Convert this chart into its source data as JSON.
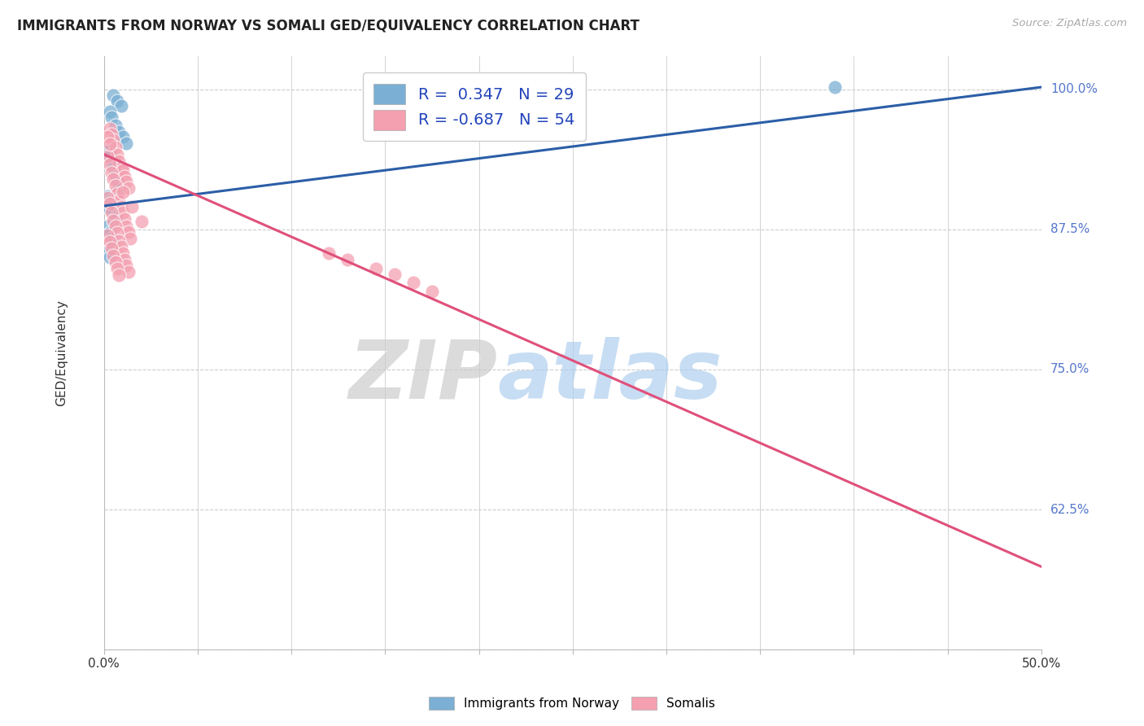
{
  "title": "IMMIGRANTS FROM NORWAY VS SOMALI GED/EQUIVALENCY CORRELATION CHART",
  "source": "Source: ZipAtlas.com",
  "ylabel": "GED/Equivalency",
  "xlim": [
    0.0,
    0.5
  ],
  "ylim": [
    0.5,
    1.03
  ],
  "xtick_positions": [
    0.0,
    0.05,
    0.1,
    0.15,
    0.2,
    0.25,
    0.3,
    0.35,
    0.4,
    0.45,
    0.5
  ],
  "ytick_positions": [
    0.5,
    0.625,
    0.75,
    0.875,
    1.0
  ],
  "ytick_labels": [
    "",
    "62.5%",
    "75.0%",
    "87.5%",
    "100.0%"
  ],
  "legend_r_norway": " 0.347",
  "legend_n_norway": "29",
  "legend_r_somali": "-0.687",
  "legend_n_somali": "54",
  "norway_color": "#7BAFD4",
  "somali_color": "#F4A0B0",
  "norway_line_color": "#2B5EA7",
  "somali_line_color": "#E0507A",
  "norway_scatter_x": [
    0.005,
    0.007,
    0.009,
    0.003,
    0.004,
    0.006,
    0.008,
    0.01,
    0.012,
    0.002,
    0.003,
    0.004,
    0.005,
    0.006,
    0.007,
    0.008,
    0.002,
    0.003,
    0.004,
    0.005,
    0.006,
    0.002,
    0.003,
    0.004,
    0.005,
    0.002,
    0.003,
    0.002,
    0.39
  ],
  "norway_scatter_y": [
    0.995,
    0.99,
    0.985,
    0.98,
    0.975,
    0.968,
    0.962,
    0.958,
    0.952,
    0.945,
    0.94,
    0.935,
    0.93,
    0.925,
    0.918,
    0.912,
    0.905,
    0.9,
    0.895,
    0.89,
    0.885,
    0.878,
    0.872,
    0.867,
    0.862,
    0.855,
    0.85,
    0.895,
    1.002
  ],
  "somali_scatter_x": [
    0.003,
    0.004,
    0.005,
    0.006,
    0.007,
    0.008,
    0.009,
    0.01,
    0.011,
    0.012,
    0.013,
    0.002,
    0.003,
    0.004,
    0.005,
    0.006,
    0.007,
    0.008,
    0.009,
    0.01,
    0.011,
    0.012,
    0.013,
    0.014,
    0.002,
    0.003,
    0.004,
    0.005,
    0.006,
    0.007,
    0.008,
    0.009,
    0.01,
    0.011,
    0.012,
    0.013,
    0.002,
    0.003,
    0.004,
    0.005,
    0.006,
    0.007,
    0.008,
    0.002,
    0.003,
    0.155,
    0.165,
    0.175,
    0.145,
    0.13,
    0.12,
    0.01,
    0.015,
    0.02
  ],
  "somali_scatter_y": [
    0.965,
    0.96,
    0.955,
    0.948,
    0.942,
    0.936,
    0.93,
    0.928,
    0.922,
    0.918,
    0.912,
    0.94,
    0.933,
    0.926,
    0.92,
    0.914,
    0.907,
    0.9,
    0.895,
    0.89,
    0.884,
    0.878,
    0.873,
    0.867,
    0.903,
    0.898,
    0.89,
    0.883,
    0.878,
    0.872,
    0.865,
    0.86,
    0.854,
    0.848,
    0.843,
    0.837,
    0.87,
    0.864,
    0.858,
    0.852,
    0.846,
    0.84,
    0.834,
    0.958,
    0.951,
    0.835,
    0.828,
    0.82,
    0.84,
    0.848,
    0.854,
    0.908,
    0.895,
    0.882
  ],
  "norway_trend_x": [
    0.0,
    0.5
  ],
  "norway_trend_y": [
    0.896,
    1.002
  ],
  "somali_trend_x": [
    0.0,
    0.5
  ],
  "somali_trend_y": [
    0.942,
    0.574
  ],
  "watermark_zip": "ZIP",
  "watermark_atlas": "atlas",
  "background_color": "#ffffff",
  "grid_color": "#cccccc",
  "grid_linestyle": "--",
  "title_fontsize": 12,
  "axis_color": "#5577cc",
  "ylabel_color": "#333333"
}
